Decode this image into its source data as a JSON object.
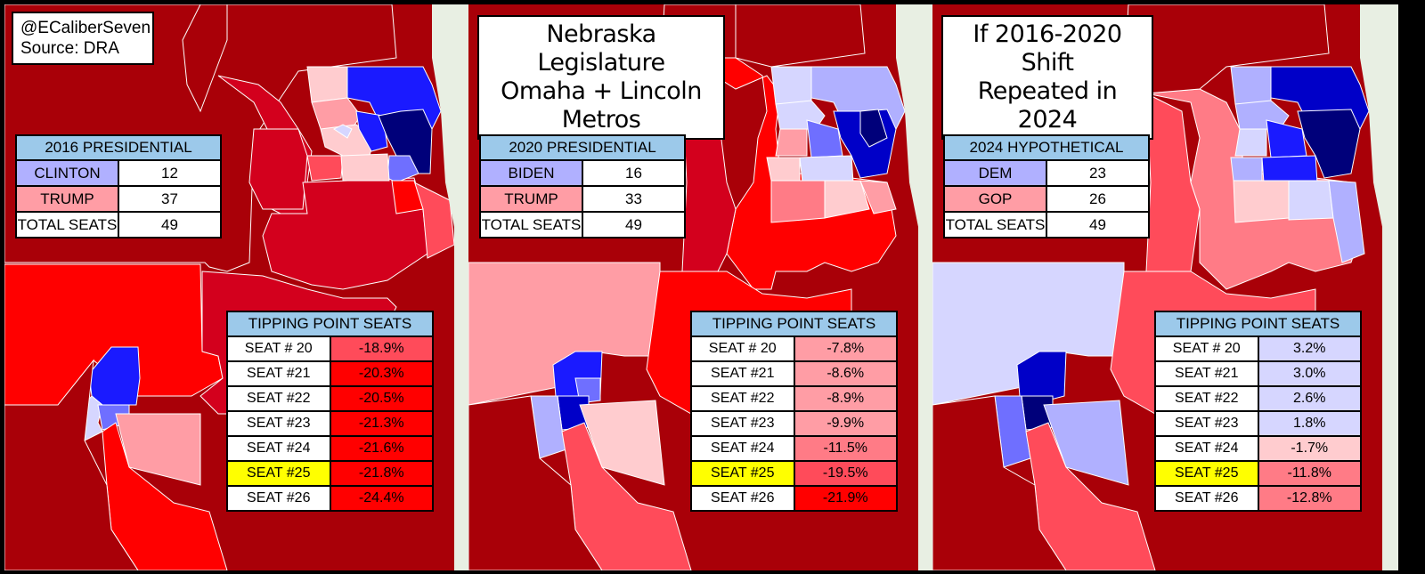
{
  "credit": {
    "handle": "@ECaliberSeven",
    "source": "Source: DRA"
  },
  "colors": {
    "safe_r": "#a90008",
    "likely_r": "#d3001d",
    "lean_r": "#ff0000",
    "tilt_r": "#ff4b5a",
    "soft_r": "#ff9da5",
    "pale_r": "#ffcccf",
    "pale_d": "#d6d6ff",
    "soft_d": "#b0b0ff",
    "lean_d": "#6f6fff",
    "likely_d": "#1a1aff",
    "safe_d": "#0000c8",
    "deep_d": "#00007a",
    "header": "#9cc9ea",
    "highlight": "#ffff00"
  },
  "panels": [
    {
      "results": {
        "header": "2016 PRESIDENTIAL",
        "rows": [
          {
            "label": "CLINTON",
            "value": "12",
            "color": "#b0b0ff"
          },
          {
            "label": "TRUMP",
            "value": "37",
            "color": "#ff9da5"
          },
          {
            "label": "TOTAL SEATS",
            "value": "49",
            "color": "#ffffff"
          }
        ]
      },
      "tipping": {
        "header": "TIPPING POINT SEATS",
        "rows": [
          {
            "seat": "SEAT # 20",
            "margin": "-18.9%",
            "color": "#ff4b5a"
          },
          {
            "seat": "SEAT #21",
            "margin": "-20.3%",
            "color": "#ff0000"
          },
          {
            "seat": "SEAT #22",
            "margin": "-20.5%",
            "color": "#ff0000"
          },
          {
            "seat": "SEAT #23",
            "margin": "-21.3%",
            "color": "#ff0000"
          },
          {
            "seat": "SEAT #24",
            "margin": "-21.6%",
            "color": "#ff0000"
          },
          {
            "seat": "SEAT #25",
            "margin": "-21.8%",
            "color": "#ff0000",
            "highlight": true
          },
          {
            "seat": "SEAT #26",
            "margin": "-24.4%",
            "color": "#ff0000"
          }
        ]
      }
    },
    {
      "title_lines": [
        "Nebraska Legislature",
        "Omaha + Lincoln Metros"
      ],
      "results": {
        "header": "2020 PRESIDENTIAL",
        "rows": [
          {
            "label": "BIDEN",
            "value": "16",
            "color": "#b0b0ff"
          },
          {
            "label": "TRUMP",
            "value": "33",
            "color": "#ff9da5"
          },
          {
            "label": "TOTAL SEATS",
            "value": "49",
            "color": "#ffffff"
          }
        ]
      },
      "tipping": {
        "header": "TIPPING POINT SEATS",
        "rows": [
          {
            "seat": "SEAT # 20",
            "margin": "-7.8%",
            "color": "#ff9da5"
          },
          {
            "seat": "SEAT #21",
            "margin": "-8.6%",
            "color": "#ff9da5"
          },
          {
            "seat": "SEAT #22",
            "margin": "-8.9%",
            "color": "#ff9da5"
          },
          {
            "seat": "SEAT #23",
            "margin": "-9.9%",
            "color": "#ff9da5"
          },
          {
            "seat": "SEAT #24",
            "margin": "-11.5%",
            "color": "#ff7b86"
          },
          {
            "seat": "SEAT #25",
            "margin": "-19.5%",
            "color": "#ff4b5a",
            "highlight": true
          },
          {
            "seat": "SEAT #26",
            "margin": "-21.9%",
            "color": "#ff0000"
          }
        ]
      }
    },
    {
      "title_lines": [
        "If 2016-2020 Shift",
        "Repeated in 2024"
      ],
      "results": {
        "header": "2024 HYPOTHETICAL",
        "rows": [
          {
            "label": "DEM",
            "value": "23",
            "color": "#b0b0ff"
          },
          {
            "label": "GOP",
            "value": "26",
            "color": "#ff9da5"
          },
          {
            "label": "TOTAL SEATS",
            "value": "49",
            "color": "#ffffff"
          }
        ]
      },
      "tipping": {
        "header": "TIPPING POINT SEATS",
        "rows": [
          {
            "seat": "SEAT # 20",
            "margin": "3.2%",
            "color": "#d6d6ff"
          },
          {
            "seat": "SEAT #21",
            "margin": "3.0%",
            "color": "#d6d6ff"
          },
          {
            "seat": "SEAT #22",
            "margin": "2.6%",
            "color": "#d6d6ff"
          },
          {
            "seat": "SEAT #23",
            "margin": "1.8%",
            "color": "#d6d6ff"
          },
          {
            "seat": "SEAT #24",
            "margin": "-1.7%",
            "color": "#ffcccf"
          },
          {
            "seat": "SEAT #25",
            "margin": "-11.8%",
            "color": "#ff7b86",
            "highlight": true
          },
          {
            "seat": "SEAT #26",
            "margin": "-12.8%",
            "color": "#ff7b86"
          }
        ]
      }
    }
  ]
}
